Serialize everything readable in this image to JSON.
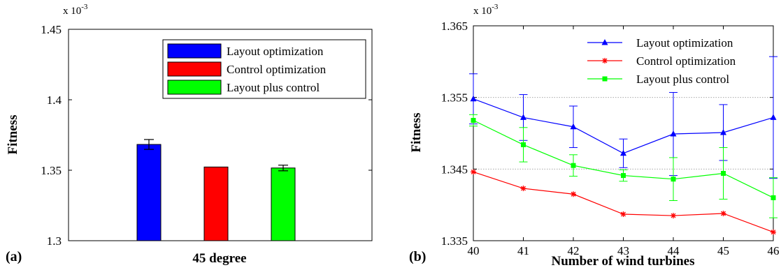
{
  "chart_data": [
    {
      "type": "bar",
      "panel_label": "(a)",
      "title": "",
      "xlabel": "45 degree",
      "ylabel": "Fitness",
      "scale_label": "x 10",
      "scale_exponent": "-3",
      "ylim": [
        1.3,
        1.45
      ],
      "yticks": [
        1.3,
        1.35,
        1.4,
        1.45
      ],
      "ytick_labels": [
        "1.3",
        "1.35",
        "1.4",
        "1.45"
      ],
      "categories": [
        "45 degree"
      ],
      "series": [
        {
          "name": "Layout optimization",
          "color": "#0000ff",
          "values": [
            1.3683
          ],
          "error": [
            0.0035
          ]
        },
        {
          "name": "Control optimization",
          "color": "#ff0000",
          "values": [
            1.3523
          ],
          "error": [
            0
          ]
        },
        {
          "name": "Layout plus control",
          "color": "#00ff00",
          "values": [
            1.3516
          ],
          "error": [
            0.002
          ]
        }
      ],
      "grid": false,
      "legend_position": "top-right"
    },
    {
      "type": "line",
      "panel_label": "(b)",
      "title": "",
      "xlabel": "Number of wind turbines",
      "ylabel": "Fitness",
      "scale_label": "x 10",
      "scale_exponent": "-3",
      "x": [
        40,
        41,
        42,
        43,
        44,
        45,
        46
      ],
      "xlim": [
        40,
        46
      ],
      "ylim": [
        1.335,
        1.365
      ],
      "yticks": [
        1.335,
        1.345,
        1.355,
        1.365
      ],
      "ytick_labels": [
        "1.335",
        "1.345",
        "1.355",
        "1.365"
      ],
      "xtick_labels": [
        "40",
        "41",
        "42",
        "43",
        "44",
        "45",
        "46"
      ],
      "gridlines_y": [
        1.345,
        1.355
      ],
      "series": [
        {
          "name": "Layout optimization",
          "color": "#0000ff",
          "marker": "triangle",
          "values": [
            1.3548,
            1.3522,
            1.3509,
            1.3472,
            1.3499,
            1.3501,
            1.3522
          ],
          "error": [
            0.0035,
            0.0032,
            0.0029,
            0.002,
            0.0058,
            0.0039,
            0.0085
          ]
        },
        {
          "name": "Control optimization",
          "color": "#ff0000",
          "marker": "star",
          "values": [
            1.3446,
            1.3423,
            1.3415,
            1.3387,
            1.3385,
            1.3388,
            1.3362
          ],
          "error": [
            0,
            0,
            0,
            0,
            0,
            0,
            0
          ]
        },
        {
          "name": "Layout plus control",
          "color": "#00ff00",
          "marker": "square",
          "values": [
            1.3518,
            1.3484,
            1.3455,
            1.3441,
            1.3436,
            1.3444,
            1.341
          ],
          "error": [
            0.0008,
            0.0024,
            0.0015,
            0.0008,
            0.003,
            0.0036,
            0.0028
          ]
        }
      ],
      "legend_position": "top-right"
    }
  ]
}
